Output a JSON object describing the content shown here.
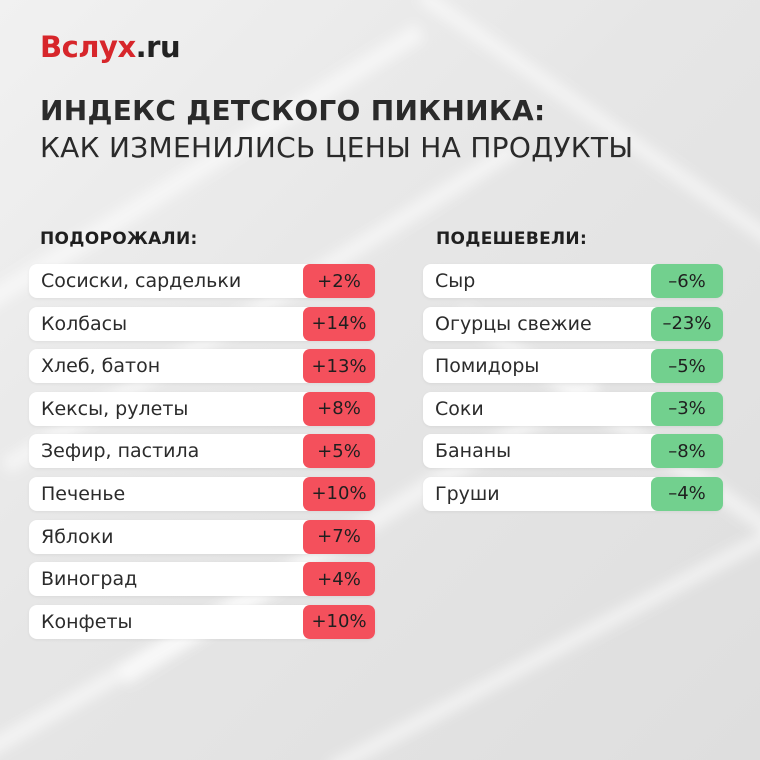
{
  "logo": {
    "brand": "Вслух",
    "tld": ".ru"
  },
  "title": {
    "line1": "ИНДЕКС ДЕТСКОГО ПИКНИКА:",
    "line2": "КАК ИЗМЕНИЛИСЬ ЦЕНЫ НА ПРОДУКТЫ"
  },
  "colors": {
    "brand": "#d7262b",
    "increase": "#f4505c",
    "decrease": "#72d08e"
  },
  "increased": {
    "heading": "ПОДОРОЖАЛИ:",
    "items": [
      {
        "name": "Сосиски, сардельки",
        "change": "+2%"
      },
      {
        "name": "Колбасы",
        "change": "+14%"
      },
      {
        "name": "Хлеб, батон",
        "change": "+13%"
      },
      {
        "name": "Кексы, рулеты",
        "change": "+8%"
      },
      {
        "name": "Зефир, пастила",
        "change": "+5%"
      },
      {
        "name": "Печенье",
        "change": "+10%"
      },
      {
        "name": "Яблоки",
        "change": "+7%"
      },
      {
        "name": "Виноград",
        "change": "+4%"
      },
      {
        "name": "Конфеты",
        "change": "+10%"
      }
    ]
  },
  "decreased": {
    "heading": "ПОДЕШЕВЕЛИ:",
    "items": [
      {
        "name": "Сыр",
        "change": "–6%"
      },
      {
        "name": "Огурцы свежие",
        "change": "–23%"
      },
      {
        "name": "Помидоры",
        "change": "–5%"
      },
      {
        "name": "Соки",
        "change": "–3%"
      },
      {
        "name": "Бананы",
        "change": "–8%"
      },
      {
        "name": "Груши",
        "change": "–4%"
      }
    ]
  }
}
